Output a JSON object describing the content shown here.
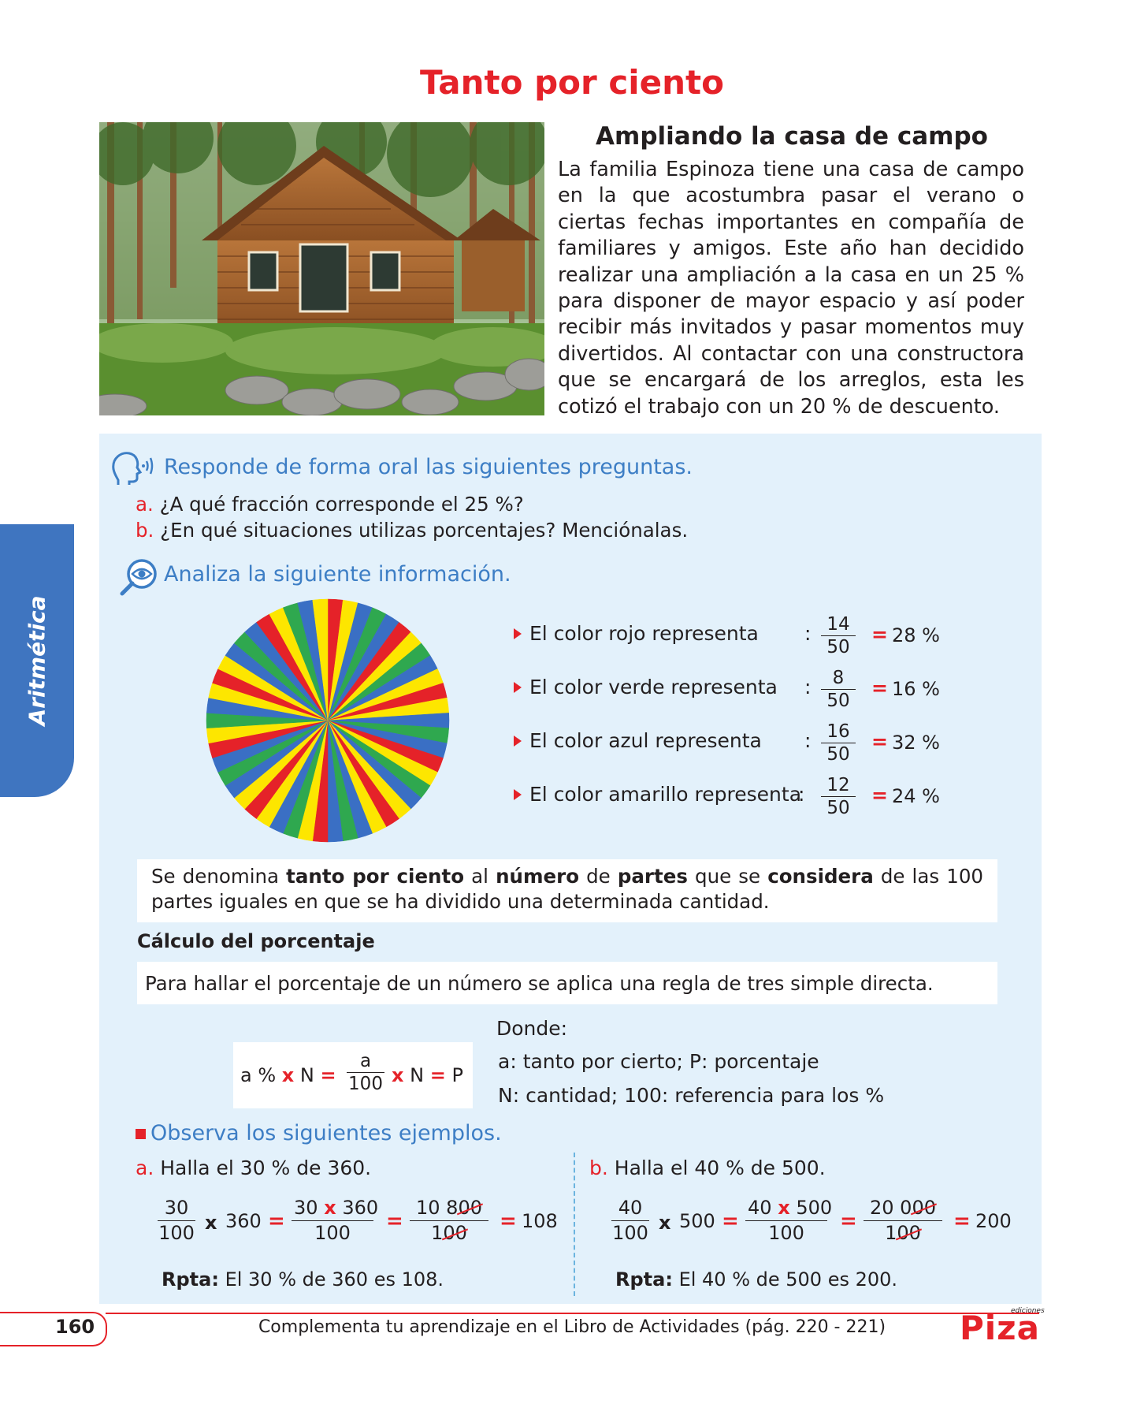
{
  "title": "Tanto por ciento",
  "story": {
    "heading": "Ampliando la casa de campo",
    "text": "La familia Espinoza tiene una casa de campo en la que acostumbra pasar el verano o ciertas fechas importantes en compañía de familiares y amigos. Este año han decidido realizar una ampliación a la casa en un 25 % para disponer de mayor espacio y así poder recibir más invitados y pasar momentos muy divertidos. Al contactar con una constructora que se encargará de los arreglos, esta les cotizó el trabajo con un 20 % de descuento."
  },
  "oral": {
    "heading": "Responde de forma oral las siguientes preguntas.",
    "questions": [
      {
        "letter": "a.",
        "text": "¿A qué fracción corresponde el 25 %?"
      },
      {
        "letter": "b.",
        "text": "¿En qué situaciones utilizas porcentajes? Menciónalas."
      }
    ]
  },
  "analyze": {
    "heading": "Analiza la siguiente información.",
    "rows": [
      {
        "label": "El color rojo representa",
        "num": "14",
        "den": "50",
        "eq": "=",
        "pct": "28 %"
      },
      {
        "label": "El color verde representa",
        "num": "8",
        "den": "50",
        "eq": "=",
        "pct": "16 %"
      },
      {
        "label": "El color azul representa",
        "num": "16",
        "den": "50",
        "eq": "=",
        "pct": "32 %"
      },
      {
        "label": "El color amarillo representa",
        "num": "12",
        "den": "50",
        "eq": "=",
        "pct": "24 %"
      }
    ],
    "colon": ":",
    "wheel": {
      "sectors": 50,
      "sequence": [
        "red",
        "yellow",
        "blue",
        "green",
        "blue",
        "red",
        "yellow",
        "green",
        "blue",
        "yellow"
      ],
      "colors": {
        "red": "#e52229",
        "yellow": "#fde600",
        "blue": "#3a6fc4",
        "green": "#2fa84f"
      }
    }
  },
  "definition": {
    "parts": [
      {
        "t": "Se denomina ",
        "b": false
      },
      {
        "t": "tanto por ciento",
        "b": true
      },
      {
        "t": " al ",
        "b": false
      },
      {
        "t": "número",
        "b": true
      },
      {
        "t": " de ",
        "b": false
      },
      {
        "t": "partes",
        "b": true
      },
      {
        "t": " que se ",
        "b": false
      },
      {
        "t": "considera",
        "b": true
      },
      {
        "t": " de las 100 partes iguales en que se ha dividido una determinada cantidad.",
        "b": false
      }
    ]
  },
  "calc": {
    "title": "Cálculo del porcentaje",
    "rule": "Para hallar el porcentaje de un número se aplica una regla de tres simple directa.",
    "formula": {
      "left": "a %",
      "times": "x",
      "n": "N",
      "eq": "=",
      "num": "a",
      "den": "100",
      "p": "P"
    },
    "where": {
      "title": "Donde:",
      "line1": "a: tanto por cierto; P: porcentaje",
      "line2": "N: cantidad; 100: referencia para los %"
    }
  },
  "examples": {
    "heading": "Observa los siguientes ejemplos.",
    "a": {
      "letter": "a.",
      "prompt": "Halla el 30 % de 360.",
      "f1_num": "30",
      "f1_den": "100",
      "times": "x",
      "n": "360",
      "f2_num_a": "30",
      "f2_num_b": "360",
      "f2_den": "100",
      "f3_num_keep": "10 8",
      "f3_num_strike": "00",
      "f3_den_keep": "1",
      "f3_den_strike": "00",
      "result": "108",
      "answer_label": "Rpta:",
      "answer": "El 30 % de 360 es 108."
    },
    "b": {
      "letter": "b.",
      "prompt": "Halla el 40 % de 500.",
      "f1_num": "40",
      "f1_den": "100",
      "times": "x",
      "n": "500",
      "f2_num_a": "40",
      "f2_num_b": "500",
      "f2_den": "100",
      "f3_num_keep": "20 0",
      "f3_num_strike": "00",
      "f3_den_keep": "1",
      "f3_den_strike": "00",
      "result": "200",
      "answer_label": "Rpta:",
      "answer": "El 40 % de 500 es 200."
    }
  },
  "side_tab": "Aritmética",
  "footer": {
    "page": "160",
    "text": "Complementa tu aprendizaje en el Libro de Actividades (pág. 220 - 221)",
    "logo": "Piza",
    "logo_small": "ediciones"
  }
}
